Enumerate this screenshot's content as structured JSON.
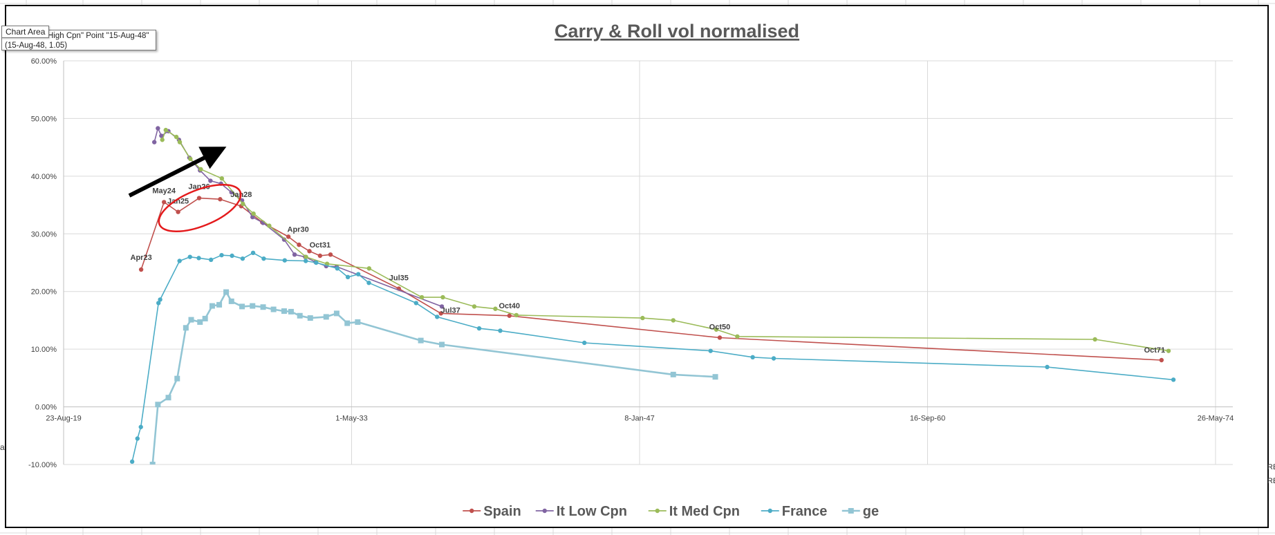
{
  "tooltip": {
    "tag": "Chart Area",
    "line1": "High Cpn\" Point \"15-Aug-48\"",
    "line2": "(15-Aug-48, 1.05)"
  },
  "edge_text": {
    "left": "a",
    "right_top": "RE",
    "right_bottom": "RE"
  },
  "chart_data": {
    "type": "line",
    "title": "Carry & Roll vol normalised",
    "xlabel": "",
    "ylabel": "",
    "x_axis": {
      "type": "date",
      "range": [
        "2019-08-23",
        "2074-05-26"
      ],
      "ticks": [
        {
          "date": "2019-08-23",
          "label": "23-Aug-19"
        },
        {
          "date": "2033-05-01",
          "label": "1-May-33"
        },
        {
          "date": "2047-01-08",
          "label": "8-Jan-47"
        },
        {
          "date": "2060-09-16",
          "label": "16-Sep-60"
        },
        {
          "date": "2074-05-26",
          "label": "26-May-74"
        }
      ]
    },
    "y_axis": {
      "range": [
        -10,
        60
      ],
      "ticks": [
        {
          "value": -10,
          "label": "-10.00%"
        },
        {
          "value": 0,
          "label": "0.00%"
        },
        {
          "value": 10,
          "label": "10.00%"
        },
        {
          "value": 20,
          "label": "20.00%"
        },
        {
          "value": 30,
          "label": "30.00%"
        },
        {
          "value": 40,
          "label": "40.00%"
        },
        {
          "value": 50,
          "label": "50.00%"
        },
        {
          "value": 60,
          "label": "60.00%"
        }
      ]
    },
    "grid": true,
    "legend_position": "bottom",
    "series": [
      {
        "name": "Spain",
        "color": "#c0504d",
        "marker": "circle",
        "points": [
          [
            "2023-04-30",
            23.8
          ],
          [
            "2024-05-31",
            35.5
          ],
          [
            "2025-01-31",
            33.8
          ],
          [
            "2026-01-31",
            36.2
          ],
          [
            "2027-01-31",
            36.0
          ],
          [
            "2028-01-31",
            34.8
          ],
          [
            "2029-01-31",
            32.0
          ],
          [
            "2030-04-30",
            29.5
          ],
          [
            "2030-10-31",
            28.1
          ],
          [
            "2031-04-30",
            27.0
          ],
          [
            "2031-10-31",
            26.2
          ],
          [
            "2032-04-30",
            26.4
          ],
          [
            "2035-07-30",
            20.5
          ],
          [
            "2037-07-30",
            16.2
          ],
          [
            "2040-10-31",
            15.8
          ],
          [
            "2050-10-31",
            12.0
          ],
          [
            "2071-10-31",
            8.1
          ]
        ]
      },
      {
        "name": "It Low Cpn",
        "color": "#8064a2",
        "marker": "circle",
        "points": [
          [
            "2023-12-15",
            45.9
          ],
          [
            "2024-02-15",
            48.3
          ],
          [
            "2024-04-15",
            47.0
          ],
          [
            "2024-08-15",
            47.8
          ],
          [
            "2025-02-15",
            46.3
          ],
          [
            "2025-08-15",
            43.2
          ],
          [
            "2026-02-15",
            41.0
          ],
          [
            "2026-08-15",
            39.2
          ],
          [
            "2027-02-15",
            38.7
          ],
          [
            "2027-08-15",
            37.2
          ],
          [
            "2028-02-15",
            35.8
          ],
          [
            "2028-08-15",
            32.9
          ],
          [
            "2029-02-15",
            31.9
          ],
          [
            "2030-02-15",
            29.0
          ],
          [
            "2030-08-15",
            26.4
          ],
          [
            "2031-02-15",
            26.0
          ],
          [
            "2031-08-15",
            25.1
          ],
          [
            "2032-02-15",
            24.4
          ],
          [
            "2032-08-15",
            24.3
          ],
          [
            "2037-08-15",
            17.4
          ]
        ]
      },
      {
        "name": "It Med Cpn",
        "color": "#9bbb59",
        "marker": "circle",
        "points": [
          [
            "2024-05-01",
            46.3
          ],
          [
            "2024-07-01",
            48.0
          ],
          [
            "2025-01-01",
            46.8
          ],
          [
            "2025-03-01",
            45.9
          ],
          [
            "2025-09-01",
            43.0
          ],
          [
            "2026-03-01",
            41.2
          ],
          [
            "2027-03-01",
            39.6
          ],
          [
            "2028-03-01",
            35.2
          ],
          [
            "2028-09-01",
            33.5
          ],
          [
            "2029-06-01",
            31.4
          ],
          [
            "2031-03-01",
            26.0
          ],
          [
            "2032-03-01",
            24.8
          ],
          [
            "2034-03-01",
            24.0
          ],
          [
            "2036-09-01",
            19.0
          ],
          [
            "2037-09-01",
            19.0
          ],
          [
            "2039-03-01",
            17.4
          ],
          [
            "2040-03-01",
            17.0
          ],
          [
            "2041-03-01",
            15.9
          ],
          [
            "2047-03-01",
            15.4
          ],
          [
            "2048-08-15",
            15.0
          ],
          [
            "2050-09-01",
            13.4
          ],
          [
            "2051-09-01",
            12.2
          ],
          [
            "2068-09-01",
            11.7
          ],
          [
            "2072-03-01",
            9.7
          ]
        ]
      },
      {
        "name": "France",
        "color": "#4bacc6",
        "marker": "circle",
        "points": [
          [
            "2022-11-25",
            -9.5
          ],
          [
            "2023-02-25",
            -5.5
          ],
          [
            "2023-04-25",
            -3.5
          ],
          [
            "2024-02-25",
            18.0
          ],
          [
            "2024-03-25",
            18.6
          ],
          [
            "2025-02-25",
            25.3
          ],
          [
            "2025-08-25",
            26.0
          ],
          [
            "2026-01-25",
            25.8
          ],
          [
            "2026-08-25",
            25.5
          ],
          [
            "2027-02-25",
            26.3
          ],
          [
            "2027-08-25",
            26.2
          ],
          [
            "2028-02-25",
            25.7
          ],
          [
            "2028-08-25",
            26.7
          ],
          [
            "2029-02-25",
            25.7
          ],
          [
            "2030-02-25",
            25.4
          ],
          [
            "2031-02-25",
            25.3
          ],
          [
            "2031-08-25",
            25.0
          ],
          [
            "2032-08-25",
            24.0
          ],
          [
            "2033-02-25",
            22.5
          ],
          [
            "2033-08-25",
            23.0
          ],
          [
            "2034-02-25",
            21.5
          ],
          [
            "2036-05-25",
            18.0
          ],
          [
            "2037-05-25",
            15.6
          ],
          [
            "2039-05-25",
            13.6
          ],
          [
            "2040-05-25",
            13.2
          ],
          [
            "2044-05-25",
            11.1
          ],
          [
            "2050-05-25",
            9.7
          ],
          [
            "2052-05-25",
            8.6
          ],
          [
            "2053-05-25",
            8.4
          ],
          [
            "2066-05-25",
            6.9
          ],
          [
            "2072-05-25",
            4.7
          ]
        ]
      },
      {
        "name": "ge",
        "color": "#92c5d4",
        "marker": "square",
        "points": [
          [
            "2023-11-15",
            -10.0
          ],
          [
            "2024-02-15",
            0.4
          ],
          [
            "2024-08-15",
            1.6
          ],
          [
            "2025-01-15",
            4.9
          ],
          [
            "2025-06-15",
            13.7
          ],
          [
            "2025-09-15",
            15.1
          ],
          [
            "2026-02-15",
            14.7
          ],
          [
            "2026-05-15",
            15.3
          ],
          [
            "2026-09-15",
            17.5
          ],
          [
            "2027-01-15",
            17.7
          ],
          [
            "2027-05-15",
            19.9
          ],
          [
            "2027-08-15",
            18.3
          ],
          [
            "2028-02-15",
            17.4
          ],
          [
            "2028-08-15",
            17.5
          ],
          [
            "2029-02-15",
            17.3
          ],
          [
            "2029-08-15",
            16.9
          ],
          [
            "2030-02-15",
            16.6
          ],
          [
            "2030-06-15",
            16.5
          ],
          [
            "2030-11-15",
            15.8
          ],
          [
            "2031-05-15",
            15.4
          ],
          [
            "2032-02-15",
            15.6
          ],
          [
            "2032-08-15",
            16.2
          ],
          [
            "2033-02-15",
            14.5
          ],
          [
            "2033-08-15",
            14.7
          ],
          [
            "2036-08-15",
            11.5
          ],
          [
            "2037-08-15",
            10.8
          ],
          [
            "2048-08-15",
            5.6
          ],
          [
            "2050-08-15",
            5.2
          ]
        ]
      }
    ],
    "annotations": [
      {
        "text": "Apr23",
        "x": "2023-04-30",
        "y": 23.8
      },
      {
        "text": "May24",
        "x": "2024-05-31",
        "y": 35.5
      },
      {
        "text": "Jan25",
        "x": "2025-01-31",
        "y": 33.8
      },
      {
        "text": "Jan26",
        "x": "2026-01-31",
        "y": 36.2
      },
      {
        "text": "Jan28",
        "x": "2028-01-31",
        "y": 34.8
      },
      {
        "text": "Apr30",
        "x": "2030-04-30",
        "y": 29.5
      },
      {
        "text": "Oct31",
        "x": "2031-10-31",
        "y": 26.2
      },
      {
        "text": "Jul35",
        "x": "2035-07-30",
        "y": 20.5
      },
      {
        "text": "Jul37",
        "x": "2037-07-30",
        "y": 16.2
      },
      {
        "text": "Oct40",
        "x": "2040-10-31",
        "y": 15.8
      },
      {
        "text": "Oct50",
        "x": "2050-10-31",
        "y": 12.0
      },
      {
        "text": "Oct71",
        "x": "2071-10-31",
        "y": 8.1
      }
    ]
  }
}
